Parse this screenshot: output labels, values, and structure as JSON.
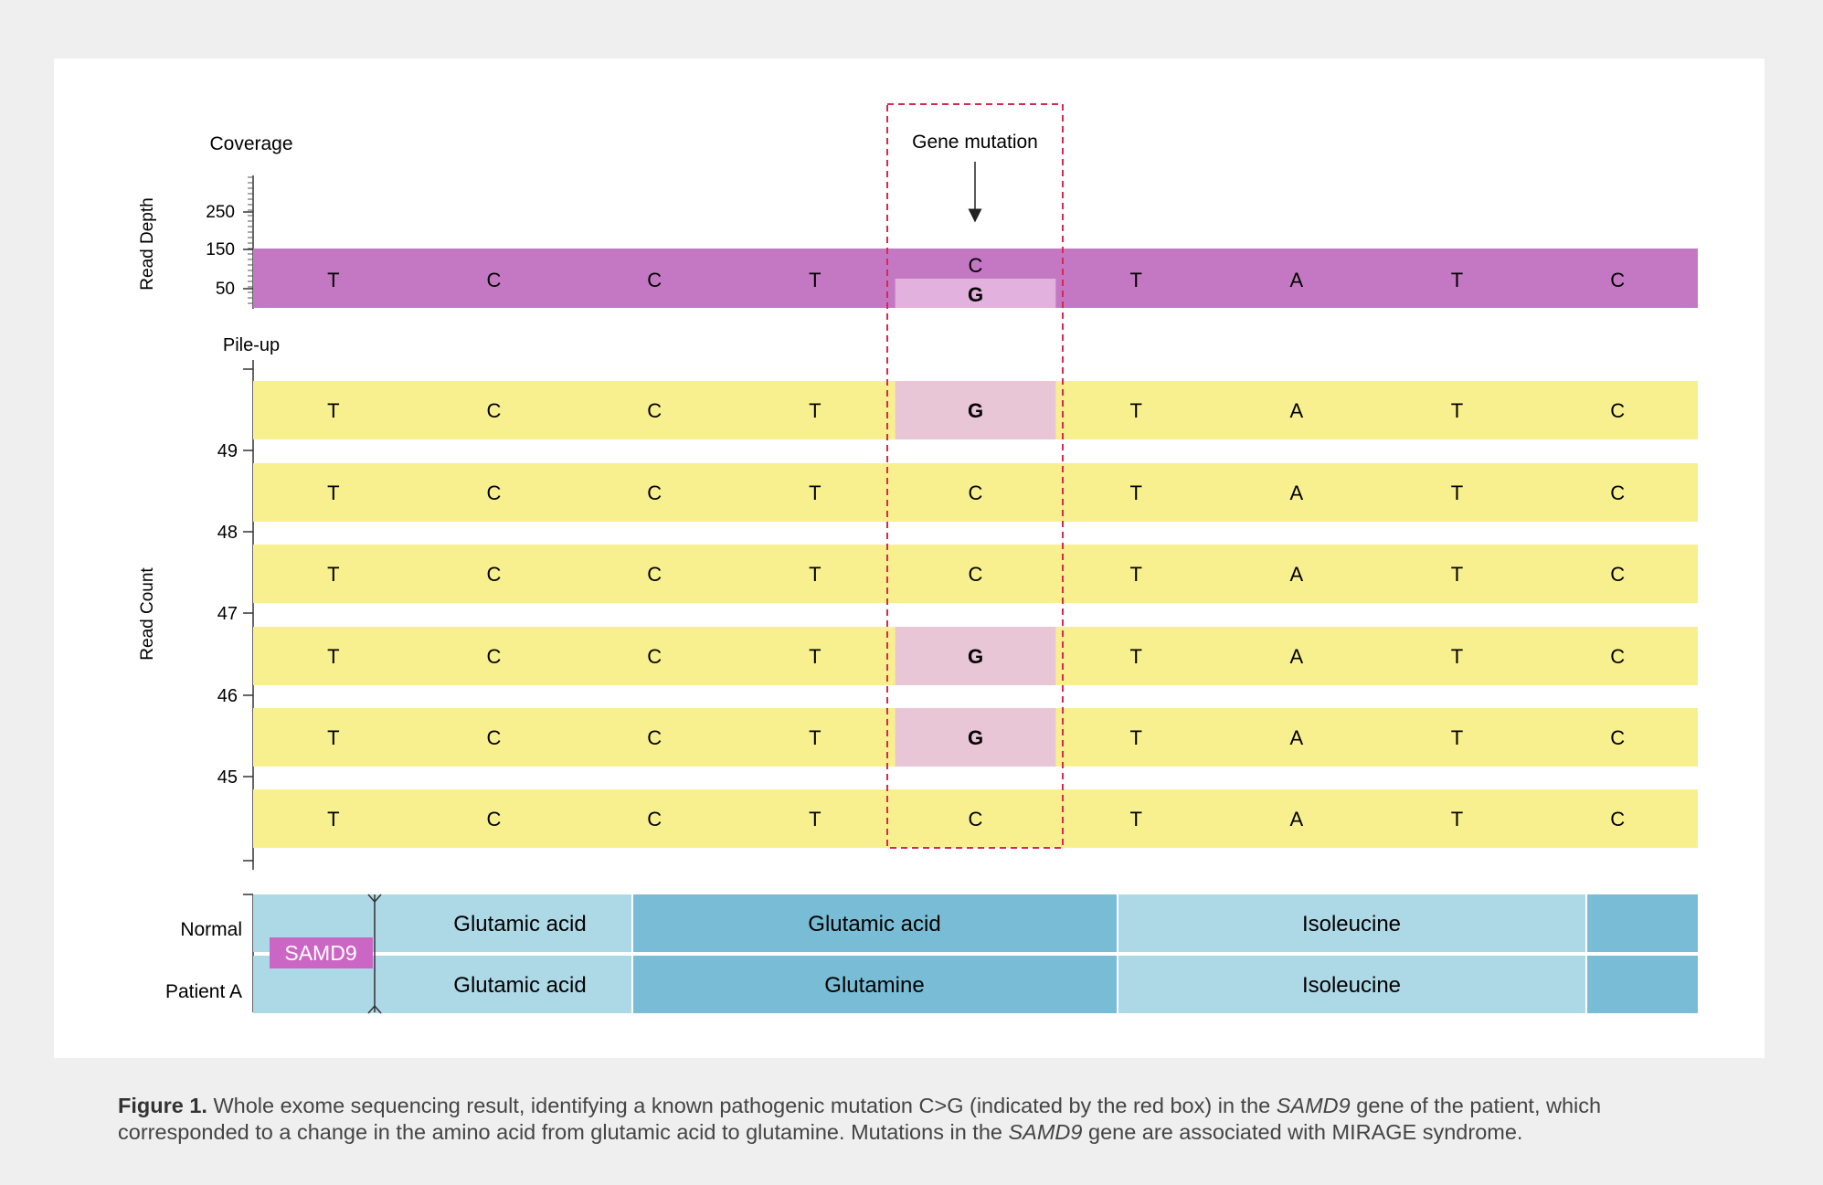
{
  "figure": {
    "coverage_label": "Coverage",
    "read_depth_label": "Read Depth",
    "pileup_label": "Pile-up",
    "read_count_label": "Read Count",
    "mutation_label": "Gene mutation",
    "depth_ticks": [
      "250",
      "150",
      "50"
    ],
    "count_ticks": [
      "49",
      "48",
      "47",
      "46",
      "45"
    ],
    "coverage_bases": [
      "T",
      "C",
      "C",
      "T",
      "C",
      "T",
      "A",
      "T",
      "C"
    ],
    "coverage_alt_base": "G",
    "mutation_index": 4,
    "reads": [
      [
        "T",
        "C",
        "C",
        "T",
        "G",
        "T",
        "A",
        "T",
        "C"
      ],
      [
        "T",
        "C",
        "C",
        "T",
        "C",
        "T",
        "A",
        "T",
        "C"
      ],
      [
        "T",
        "C",
        "C",
        "T",
        "C",
        "T",
        "A",
        "T",
        "C"
      ],
      [
        "T",
        "C",
        "C",
        "T",
        "G",
        "T",
        "A",
        "T",
        "C"
      ],
      [
        "T",
        "C",
        "C",
        "T",
        "G",
        "T",
        "A",
        "T",
        "C"
      ],
      [
        "T",
        "C",
        "C",
        "T",
        "C",
        "T",
        "A",
        "T",
        "C"
      ]
    ],
    "normal_label": "Normal",
    "patient_label": "Patient A",
    "gene_label": "SAMD9",
    "normal_aa": [
      "Glutamic acid",
      "Glutamic acid",
      "Isoleucine"
    ],
    "patient_aa": [
      "Glutamic acid",
      "Glutamine",
      "Isoleucine"
    ],
    "colors": {
      "coverage_bar": "#c478c3",
      "coverage_alt": "#e2b1dd",
      "read_bar": "#f8f08e",
      "read_mutant": "#e8c6d6",
      "mutation_box": "#d7284f",
      "aa_light": "#add8e6",
      "aa_dark": "#78bdd5",
      "gene_badge": "#cc66c4"
    }
  },
  "caption": {
    "label": "Figure 1.",
    "text_1": " Whole exome sequencing result, identifying a known pathogenic mutation C>G (indicated by the red box) in the ",
    "gene_italic_1": "SAMD9",
    "text_2": " gene of the patient, which corresponded to a change in the amino acid from glutamic acid to glutamine. Mutations in the ",
    "gene_italic_2": "SAMD9",
    "text_3": " gene are associated with MIRAGE syndrome."
  }
}
